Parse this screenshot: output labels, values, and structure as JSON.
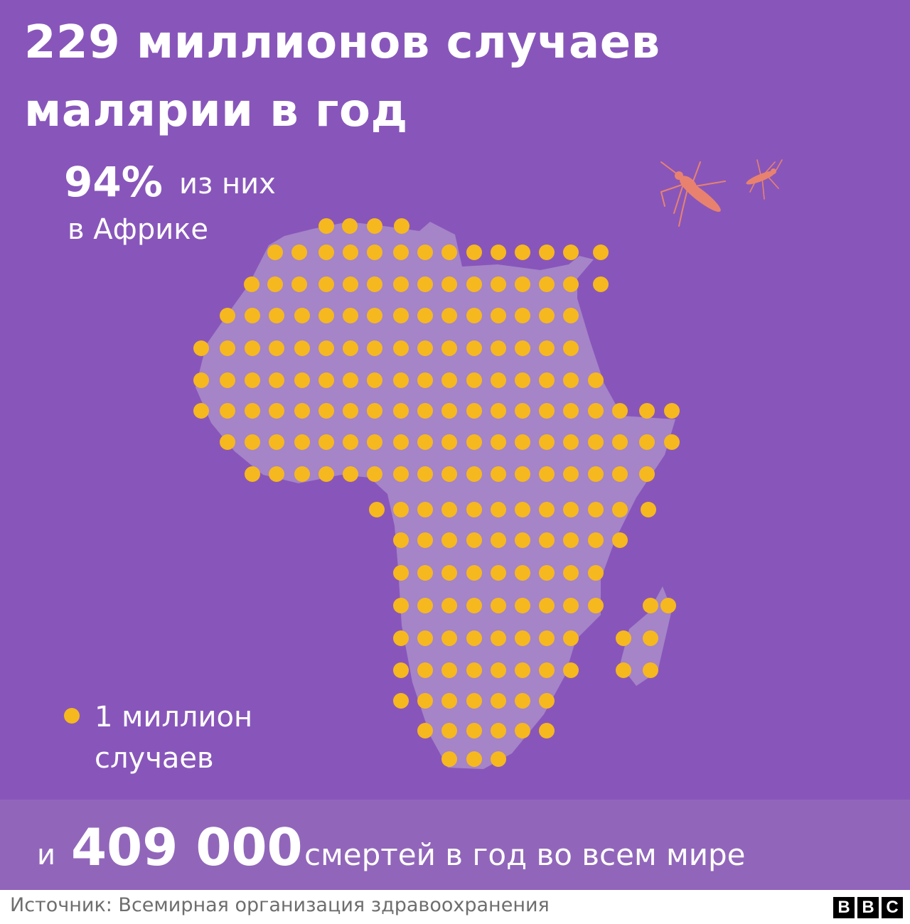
{
  "title": {
    "line1": "229 миллионов случаев",
    "line2": "малярии в год"
  },
  "share": {
    "percent": "94%",
    "rest": "из них",
    "region": "в Африке"
  },
  "legend": {
    "line1": "1 миллион",
    "line2": "случаев",
    "unit_cases_millions": 1
  },
  "deaths": {
    "prefix": "и",
    "number": "409 000",
    "suffix": "смертей в год во всем мире"
  },
  "footer": {
    "source": "Источник: Всемирная организация здравоохранения",
    "logo": "BBC"
  },
  "colors": {
    "background": "#8856BA",
    "map": "#A584C8",
    "dot": "#F6B81F",
    "bar": "#9166BA",
    "mosquito": "#E8826F"
  },
  "icons": [
    "mosquito-icon",
    "mosquito-icon",
    "africa-map"
  ]
}
